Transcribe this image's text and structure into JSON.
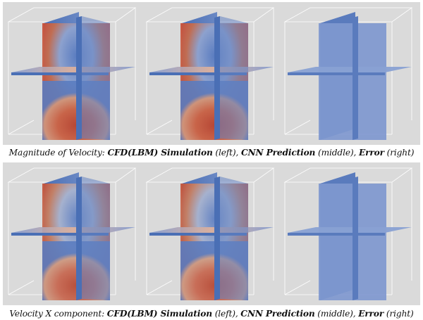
{
  "figure": {
    "rows": [
      {
        "id": "magnitude",
        "caption": {
          "prefix": "Magnitude of Velocity: ",
          "sim_label": "CFD(LBM) Simulation",
          "sim_pos": " (left), ",
          "cnn_label": "CNN Prediction",
          "cnn_pos": " (middle), ",
          "err_label": "Error",
          "err_pos": " (right)"
        },
        "panels": [
          "simulation",
          "prediction",
          "error"
        ]
      },
      {
        "id": "velocity-x",
        "caption": {
          "prefix": "Velocity X component: ",
          "sim_label": "CFD(LBM) Simulation",
          "sim_pos": " (left), ",
          "cnn_label": "CNN Prediction",
          "cnn_pos": " (middle), ",
          "err_label": "Error",
          "err_pos": " (right)"
        },
        "panels": [
          "simulation",
          "prediction",
          "error"
        ]
      }
    ],
    "colors": {
      "background": "#dadada",
      "low": "#4a6fb5",
      "mid": "#9fb0cf",
      "high": "#c9503a",
      "error_plane": "#7f98cf",
      "box_edges": "#ffffff"
    }
  }
}
